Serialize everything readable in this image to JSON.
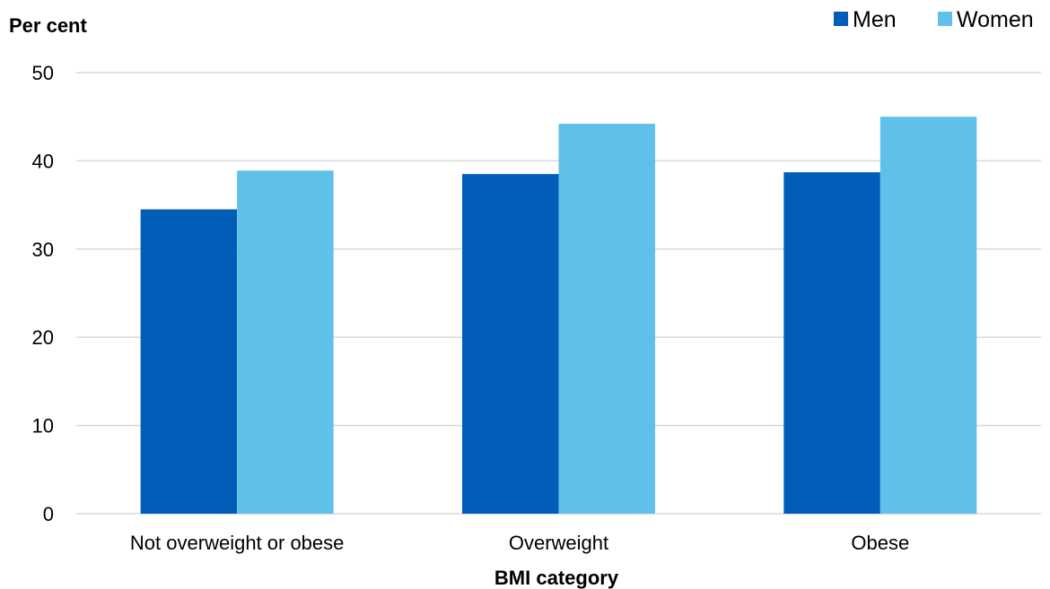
{
  "chart_data": {
    "type": "bar",
    "ylabel": "Per cent",
    "xlabel": "BMI category",
    "categories": [
      "Not overweight or obese",
      "Overweight",
      "Obese"
    ],
    "series": [
      {
        "name": "Men",
        "color": "#005eb8",
        "values": [
          34.5,
          38.5,
          38.7
        ]
      },
      {
        "name": "Women",
        "color": "#5fc1ea",
        "values": [
          38.9,
          44.2,
          45.0
        ]
      }
    ],
    "ylim": [
      0,
      50
    ],
    "yticks": [
      0,
      10,
      20,
      30,
      40,
      50
    ],
    "grid": true,
    "legend_position": "top-right"
  }
}
